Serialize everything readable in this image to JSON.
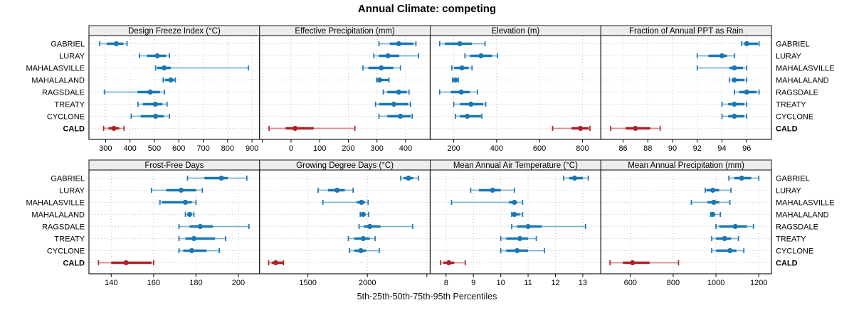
{
  "title": "Annual Climate: competing",
  "caption": "5th-25th-50th-75th-95th Percentiles",
  "colors": {
    "site": "#1A77B4",
    "site_light": "#7EB2D4",
    "highlight": "#B02126",
    "highlight_light": "#D9898B",
    "strip_bg": "#EDEDED",
    "grid": "#C4C4C4",
    "border": "#1A1A1A",
    "tick": "#000000"
  },
  "sites": [
    "GABRIEL",
    "LURAY",
    "MAHALASVILLE",
    "MAHALALAND",
    "RAGSDALE",
    "TREATY",
    "CYCLONE",
    "CALD"
  ],
  "highlight_site": "CALD",
  "chart_data": {
    "type": "dotplot-percentiles",
    "title": "Annual Climate: competing",
    "xlabel": "5th-25th-50th-75th-95th Percentiles",
    "percentiles": [
      5,
      25,
      50,
      75,
      95
    ],
    "legend_position": "none",
    "grid": "dotted",
    "panels": [
      {
        "title": "Design Freeze Index (°C)",
        "xlim": [
          232,
          931
        ],
        "ticks": [
          300,
          400,
          500,
          600,
          700,
          800,
          900
        ],
        "tick_labels": [
          "300",
          "400",
          "500",
          "600",
          "700",
          "800",
          "900"
        ],
        "values": [
          [
            276,
            305,
            344,
            373,
            388
          ],
          [
            439,
            470,
            512,
            548,
            562
          ],
          [
            505,
            512,
            540,
            567,
            885
          ],
          [
            536,
            543,
            567,
            582,
            586
          ],
          [
            295,
            431,
            483,
            523,
            541
          ],
          [
            433,
            453,
            504,
            533,
            552
          ],
          [
            405,
            444,
            505,
            538,
            562
          ],
          [
            292,
            312,
            334,
            356,
            376
          ]
        ]
      },
      {
        "title": "Effective Precipitation (mm)",
        "xlim": [
          -110,
          486
        ],
        "ticks": [
          0,
          100,
          200,
          300,
          400
        ],
        "tick_labels": [
          "0",
          "100",
          "200",
          "300",
          "400"
        ],
        "minor_ticks": [
          -100
        ],
        "values": [
          [
            307,
            345,
            376,
            427,
            436
          ],
          [
            289,
            307,
            339,
            378,
            445
          ],
          [
            251,
            270,
            315,
            357,
            382
          ],
          [
            299,
            302,
            309,
            340,
            342
          ],
          [
            322,
            336,
            376,
            404,
            412
          ],
          [
            295,
            307,
            359,
            409,
            417
          ],
          [
            307,
            336,
            382,
            417,
            423
          ],
          [
            -77,
            -19,
            14,
            79,
            223
          ]
        ]
      },
      {
        "title": "Elevation (m)",
        "xlim": [
          90,
          886
        ],
        "ticks": [
          200,
          400,
          600,
          800
        ],
        "tick_labels": [
          "200",
          "400",
          "600",
          "800"
        ],
        "values": [
          [
            134,
            158,
            228,
            285,
            346
          ],
          [
            252,
            276,
            327,
            379,
            404
          ],
          [
            191,
            202,
            238,
            269,
            285
          ],
          [
            194,
            197,
            208,
            221,
            221
          ],
          [
            134,
            186,
            235,
            274,
            310
          ],
          [
            200,
            230,
            280,
            337,
            349
          ],
          [
            208,
            228,
            263,
            327,
            331
          ],
          [
            661,
            749,
            791,
            829,
            835
          ]
        ]
      },
      {
        "title": "Fraction of Annual PPT as Rain",
        "xlim": [
          84.2,
          98.0
        ],
        "ticks": [
          86,
          88,
          90,
          92,
          94,
          96
        ],
        "tick_labels": [
          "86",
          "88",
          "90",
          "92",
          "94",
          "96"
        ],
        "values": [
          [
            95.6,
            95.8,
            96.0,
            96.9,
            97.0
          ],
          [
            92.0,
            92.9,
            94.0,
            94.4,
            95.0
          ],
          [
            92.0,
            94.6,
            95.0,
            95.7,
            96.0
          ],
          [
            94.6,
            94.8,
            95.0,
            95.8,
            96.0
          ],
          [
            95.0,
            95.4,
            96.0,
            96.8,
            97.0
          ],
          [
            94.0,
            94.5,
            95.0,
            95.8,
            96.0
          ],
          [
            94.0,
            94.5,
            95.0,
            95.8,
            96.0
          ],
          [
            85.0,
            86.2,
            87.0,
            88.2,
            89.0
          ]
        ]
      },
      {
        "title": "Frost-Free Days",
        "xlim": [
          129.5,
          210
        ],
        "ticks": [
          140,
          160,
          180,
          200
        ],
        "tick_labels": [
          "140",
          "160",
          "180",
          "200"
        ],
        "values": [
          [
            176,
            184,
            192,
            195,
            204
          ],
          [
            159,
            166,
            173,
            180,
            183
          ],
          [
            163,
            164,
            175,
            178,
            180
          ],
          [
            175,
            176,
            177,
            178,
            179
          ],
          [
            172,
            177,
            182,
            188,
            205
          ],
          [
            172,
            175,
            179,
            189,
            194
          ],
          [
            172,
            174,
            178,
            185,
            191
          ],
          [
            134,
            140,
            147,
            159,
            160
          ]
        ]
      },
      {
        "title": "Growing Degree Days (°C)",
        "xlim": [
          1094,
          2528
        ],
        "ticks": [
          1500,
          2000
        ],
        "tick_labels": [
          "1500",
          "2000"
        ],
        "minor_ticks": [
          2500
        ],
        "values": [
          [
            2280,
            2305,
            2345,
            2385,
            2430
          ],
          [
            1586,
            1670,
            1745,
            1810,
            1880
          ],
          [
            1626,
            1910,
            1950,
            1980,
            2006
          ],
          [
            1940,
            1945,
            1965,
            1985,
            2010
          ],
          [
            1930,
            1970,
            2020,
            2110,
            2380
          ],
          [
            1840,
            1890,
            1965,
            2020,
            2065
          ],
          [
            1850,
            1890,
            1945,
            1990,
            2100
          ],
          [
            1170,
            1195,
            1230,
            1290,
            1295
          ]
        ]
      },
      {
        "title": "Mean Annual Air Temperature (°C)",
        "xlim": [
          7.42,
          13.66
        ],
        "ticks": [
          8,
          9,
          10,
          11,
          12,
          13
        ],
        "tick_labels": [
          "8",
          "9",
          "10",
          "11",
          "12",
          "13"
        ],
        "values": [
          [
            12.3,
            12.5,
            12.7,
            13.0,
            13.2
          ],
          [
            8.9,
            9.2,
            9.7,
            10.0,
            10.5
          ],
          [
            8.2,
            10.3,
            10.5,
            10.6,
            10.8
          ],
          [
            10.4,
            10.4,
            10.5,
            10.7,
            10.8
          ],
          [
            10.4,
            10.6,
            11.0,
            11.5,
            13.1
          ],
          [
            10.0,
            10.2,
            10.7,
            11.0,
            11.3
          ],
          [
            10.0,
            10.2,
            10.6,
            11.0,
            11.6
          ],
          [
            7.8,
            7.9,
            8.1,
            8.3,
            8.7
          ]
        ]
      },
      {
        "title": "Mean Annual Precipitation (mm)",
        "xlim": [
          462,
          1259
        ],
        "ticks": [
          600,
          800,
          1000,
          1200
        ],
        "tick_labels": [
          "600",
          "800",
          "1000",
          "1200"
        ],
        "values": [
          [
            1060,
            1085,
            1120,
            1165,
            1200
          ],
          [
            950,
            955,
            985,
            1015,
            1070
          ],
          [
            885,
            960,
            990,
            1015,
            1065
          ],
          [
            975,
            978,
            985,
            995,
            1020
          ],
          [
            1000,
            1015,
            1090,
            1145,
            1175
          ],
          [
            980,
            1000,
            1040,
            1070,
            1105
          ],
          [
            980,
            1000,
            1065,
            1095,
            1130
          ],
          [
            505,
            565,
            610,
            690,
            825
          ]
        ]
      }
    ]
  }
}
